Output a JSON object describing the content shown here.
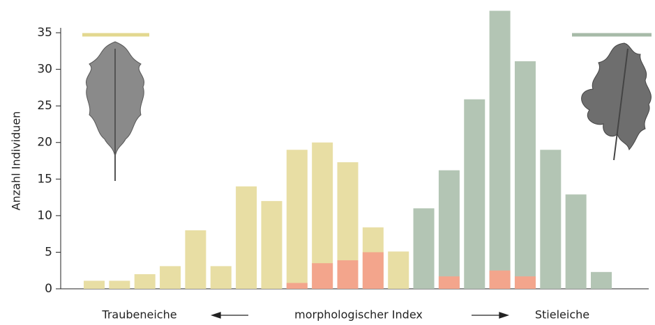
{
  "chart_data": {
    "type": "bar",
    "y_label": "Anzahl Individuen",
    "x_label": "morphologischer Index",
    "left_label": "Traubeneiche",
    "right_label": "Stieleiche",
    "ylim": [
      0,
      38
    ],
    "yticks": [
      0,
      5,
      10,
      15,
      20,
      25,
      30,
      35
    ],
    "series": [
      {
        "color": "#e8dea4",
        "values": [
          1.1,
          1.1,
          2,
          3.1,
          8,
          3.1,
          14,
          12,
          19,
          20,
          17.3,
          8.4,
          5.1,
          null,
          null,
          null,
          null,
          null,
          null,
          null,
          null
        ]
      },
      {
        "color": "#b3c5b4",
        "values": [
          null,
          null,
          null,
          null,
          null,
          null,
          null,
          null,
          null,
          null,
          null,
          null,
          null,
          11,
          16.2,
          25.9,
          38,
          31.1,
          19,
          12.9,
          2.3
        ]
      },
      {
        "color": "#f3a58c",
        "values": [
          null,
          null,
          null,
          null,
          null,
          null,
          null,
          null,
          0.8,
          3.5,
          3.9,
          5,
          null,
          null,
          1.7,
          null,
          2.5,
          1.7,
          null,
          null,
          null
        ]
      }
    ]
  }
}
